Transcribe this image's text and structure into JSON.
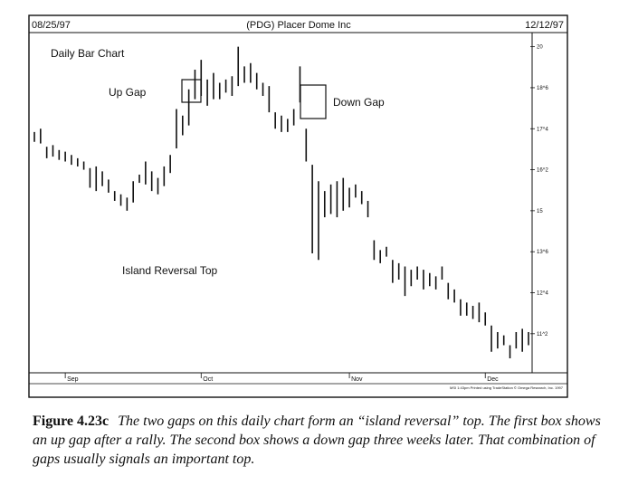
{
  "chart_data": {
    "type": "ohlc_bar",
    "title": "(PDG) Placer Dome Inc",
    "start_date": "08/25/97",
    "end_date": "12/12/97",
    "chart_label": "Daily Bar Chart",
    "y_ticks": [
      "20",
      "18^6",
      "17^4",
      "16^2",
      "15",
      "13^6",
      "12^4",
      "11^2"
    ],
    "y_tick_values": [
      20,
      18.75,
      17.5,
      16.25,
      15,
      13.75,
      12.5,
      11.25
    ],
    "ylim": [
      10.5,
      20.1
    ],
    "x_months": [
      "Sep",
      "Oct",
      "Nov",
      "Dec"
    ],
    "annotations": {
      "up_gap": "Up Gap",
      "down_gap": "Down Gap",
      "island": "Island Reversal Top"
    },
    "credit": "MSI 1:43pm Printed using TradeStation © Omega Research, Inc. 1997",
    "bars": [
      {
        "high": 17.4,
        "low": 17.1
      },
      {
        "high": 17.5,
        "low": 17.05
      },
      {
        "high": 16.95,
        "low": 16.6
      },
      {
        "high": 17.0,
        "low": 16.65
      },
      {
        "high": 16.85,
        "low": 16.55
      },
      {
        "high": 16.8,
        "low": 16.5
      },
      {
        "high": 16.7,
        "low": 16.4
      },
      {
        "high": 16.6,
        "low": 16.35
      },
      {
        "high": 16.5,
        "low": 16.25
      },
      {
        "high": 16.3,
        "low": 15.7
      },
      {
        "high": 16.35,
        "low": 15.6
      },
      {
        "high": 16.2,
        "low": 15.75
      },
      {
        "high": 15.95,
        "low": 15.55
      },
      {
        "high": 15.6,
        "low": 15.3
      },
      {
        "high": 15.5,
        "low": 15.15
      },
      {
        "high": 15.4,
        "low": 15.0
      },
      {
        "high": 15.9,
        "low": 15.25
      },
      {
        "high": 16.1,
        "low": 15.85
      },
      {
        "high": 16.5,
        "low": 15.8
      },
      {
        "high": 16.2,
        "low": 15.6
      },
      {
        "high": 16.0,
        "low": 15.5
      },
      {
        "high": 16.35,
        "low": 15.75
      },
      {
        "high": 16.7,
        "low": 16.15
      },
      {
        "high": 18.1,
        "low": 16.9
      },
      {
        "high": 17.9,
        "low": 17.3
      },
      {
        "high": 18.7,
        "low": 17.6
      },
      {
        "high": 19.3,
        "low": 18.4
      },
      {
        "high": 19.6,
        "low": 18.5
      },
      {
        "high": 19.0,
        "low": 18.2
      },
      {
        "high": 19.2,
        "low": 18.4
      },
      {
        "high": 18.9,
        "low": 18.4
      },
      {
        "high": 19.0,
        "low": 18.6
      },
      {
        "high": 19.1,
        "low": 18.5
      },
      {
        "high": 20.0,
        "low": 18.8
      },
      {
        "high": 19.4,
        "low": 18.9
      },
      {
        "high": 19.5,
        "low": 18.9
      },
      {
        "high": 19.2,
        "low": 18.7
      },
      {
        "high": 18.9,
        "low": 18.5
      },
      {
        "high": 18.8,
        "low": 18.0
      },
      {
        "high": 18.0,
        "low": 17.5
      },
      {
        "high": 17.9,
        "low": 17.4
      },
      {
        "high": 17.8,
        "low": 17.4
      },
      {
        "high": 18.1,
        "low": 17.6
      },
      {
        "high": 19.4,
        "low": 18.3
      },
      {
        "high": 17.5,
        "low": 16.5
      },
      {
        "high": 16.4,
        "low": 13.7
      },
      {
        "high": 15.9,
        "low": 13.5
      },
      {
        "high": 15.6,
        "low": 14.8
      },
      {
        "high": 15.8,
        "low": 14.9
      },
      {
        "high": 15.9,
        "low": 14.8
      },
      {
        "high": 16.0,
        "low": 15.0
      },
      {
        "high": 15.7,
        "low": 15.1
      },
      {
        "high": 15.8,
        "low": 15.4
      },
      {
        "high": 15.6,
        "low": 15.2
      },
      {
        "high": 15.3,
        "low": 14.8
      },
      {
        "high": 14.1,
        "low": 13.5
      },
      {
        "high": 13.8,
        "low": 13.4
      },
      {
        "high": 13.9,
        "low": 13.6
      },
      {
        "high": 13.5,
        "low": 12.8
      },
      {
        "high": 13.4,
        "low": 12.9
      },
      {
        "high": 13.3,
        "low": 12.4
      },
      {
        "high": 13.2,
        "low": 12.7
      },
      {
        "high": 13.3,
        "low": 12.9
      },
      {
        "high": 13.2,
        "low": 12.6
      },
      {
        "high": 13.1,
        "low": 12.7
      },
      {
        "high": 13.0,
        "low": 12.6
      },
      {
        "high": 13.3,
        "low": 12.9
      },
      {
        "high": 12.8,
        "low": 12.3
      },
      {
        "high": 12.6,
        "low": 12.2
      },
      {
        "high": 12.3,
        "low": 11.8
      },
      {
        "high": 12.2,
        "low": 11.8
      },
      {
        "high": 12.1,
        "low": 11.7
      },
      {
        "high": 12.2,
        "low": 11.6
      },
      {
        "high": 11.9,
        "low": 11.5
      },
      {
        "high": 11.5,
        "low": 10.7
      },
      {
        "high": 11.3,
        "low": 10.8
      },
      {
        "high": 11.2,
        "low": 10.9
      },
      {
        "high": 10.9,
        "low": 10.5
      },
      {
        "high": 11.3,
        "low": 10.8
      },
      {
        "high": 11.4,
        "low": 10.7
      },
      {
        "high": 11.3,
        "low": 10.9
      }
    ]
  },
  "caption": {
    "figure_label": "Figure 4.23c",
    "text": "The two gaps on this daily chart form an “island reversal” top. The first box shows an up gap after a rally. The second box shows a down gap three weeks later. That combination of gaps usually signals an important top."
  }
}
